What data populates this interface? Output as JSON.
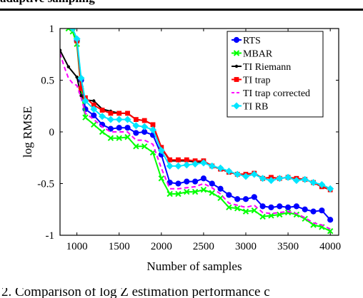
{
  "header": {
    "caption_fragment": "adaptive sampling"
  },
  "footer": {
    "caption_fragment": "2. Comparison of log Z estimation performance c"
  },
  "chart_data": {
    "type": "line",
    "title": "",
    "xlabel": "Number of samples",
    "ylabel": "log RMSE",
    "xlim": [
      800,
      4100
    ],
    "ylim": [
      -1,
      1
    ],
    "xticks": [
      1000,
      1500,
      2000,
      2500,
      3000,
      3500,
      4000
    ],
    "yticks": [
      1,
      0.5,
      0,
      -0.5,
      -1
    ],
    "ytick_labels": [
      "1",
      "0.5",
      "0",
      "-0.5",
      "-1"
    ],
    "grid": false,
    "legend_position": "top-right",
    "series": [
      {
        "name": "RTS",
        "color": "#0000ff",
        "marker": "circle",
        "dash": "",
        "points": [
          [
            950,
            1.0
          ],
          [
            1000,
            0.88
          ],
          [
            1050,
            0.5
          ],
          [
            1100,
            0.22
          ],
          [
            1200,
            0.16
          ],
          [
            1300,
            0.07
          ],
          [
            1400,
            0.03
          ],
          [
            1500,
            0.04
          ],
          [
            1600,
            0.04
          ],
          [
            1700,
            -0.01
          ],
          [
            1800,
            0.0
          ],
          [
            1900,
            -0.03
          ],
          [
            2000,
            -0.22
          ],
          [
            2100,
            -0.49
          ],
          [
            2200,
            -0.5
          ],
          [
            2300,
            -0.48
          ],
          [
            2400,
            -0.48
          ],
          [
            2500,
            -0.45
          ],
          [
            2600,
            -0.5
          ],
          [
            2700,
            -0.55
          ],
          [
            2800,
            -0.61
          ],
          [
            2900,
            -0.65
          ],
          [
            3000,
            -0.65
          ],
          [
            3100,
            -0.63
          ],
          [
            3200,
            -0.72
          ],
          [
            3300,
            -0.73
          ],
          [
            3400,
            -0.72
          ],
          [
            3500,
            -0.73
          ],
          [
            3600,
            -0.72
          ],
          [
            3700,
            -0.75
          ],
          [
            3800,
            -0.77
          ],
          [
            3900,
            -0.76
          ],
          [
            4000,
            -0.85
          ]
        ]
      },
      {
        "name": "MBAR",
        "color": "#00ff00",
        "marker": "x",
        "dash": "",
        "points": [
          [
            900,
            1.0
          ],
          [
            950,
            0.97
          ],
          [
            1000,
            0.85
          ],
          [
            1050,
            0.4
          ],
          [
            1100,
            0.14
          ],
          [
            1200,
            0.07
          ],
          [
            1300,
            0.0
          ],
          [
            1400,
            -0.06
          ],
          [
            1500,
            -0.06
          ],
          [
            1600,
            -0.05
          ],
          [
            1700,
            -0.14
          ],
          [
            1800,
            -0.14
          ],
          [
            1900,
            -0.2
          ],
          [
            2000,
            -0.45
          ],
          [
            2100,
            -0.6
          ],
          [
            2200,
            -0.6
          ],
          [
            2300,
            -0.58
          ],
          [
            2400,
            -0.58
          ],
          [
            2500,
            -0.56
          ],
          [
            2600,
            -0.59
          ],
          [
            2700,
            -0.64
          ],
          [
            2800,
            -0.73
          ],
          [
            2900,
            -0.74
          ],
          [
            3000,
            -0.77
          ],
          [
            3100,
            -0.76
          ],
          [
            3200,
            -0.82
          ],
          [
            3300,
            -0.81
          ],
          [
            3400,
            -0.8
          ],
          [
            3500,
            -0.78
          ],
          [
            3600,
            -0.8
          ],
          [
            3700,
            -0.84
          ],
          [
            3800,
            -0.9
          ],
          [
            3900,
            -0.92
          ],
          [
            4000,
            -0.96
          ]
        ]
      },
      {
        "name": "TI Riemann",
        "color": "#000000",
        "marker": "dot",
        "dash": "",
        "points": [
          [
            800,
            0.79
          ],
          [
            900,
            0.63
          ],
          [
            1000,
            0.53
          ],
          [
            1050,
            0.35
          ],
          [
            1100,
            0.31
          ],
          [
            1200,
            0.3
          ],
          [
            1300,
            0.22
          ],
          [
            1400,
            0.2
          ],
          [
            1500,
            0.18
          ],
          [
            1600,
            0.18
          ],
          [
            1700,
            0.12
          ],
          [
            1800,
            0.11
          ],
          [
            1900,
            0.07
          ],
          [
            2000,
            -0.15
          ],
          [
            2100,
            -0.28
          ],
          [
            2200,
            -0.28
          ],
          [
            2300,
            -0.28
          ],
          [
            2400,
            -0.29
          ],
          [
            2500,
            -0.29
          ],
          [
            2600,
            -0.33
          ],
          [
            2700,
            -0.36
          ],
          [
            2800,
            -0.39
          ],
          [
            2900,
            -0.41
          ],
          [
            3000,
            -0.41
          ],
          [
            3100,
            -0.4
          ],
          [
            3200,
            -0.45
          ],
          [
            3300,
            -0.44
          ],
          [
            3400,
            -0.45
          ],
          [
            3500,
            -0.44
          ],
          [
            3600,
            -0.45
          ],
          [
            3700,
            -0.46
          ],
          [
            3800,
            -0.49
          ],
          [
            3900,
            -0.53
          ],
          [
            4000,
            -0.56
          ]
        ]
      },
      {
        "name": "TI trap",
        "color": "#ff0000",
        "marker": "square",
        "dash": "",
        "points": [
          [
            1000,
            0.88
          ],
          [
            1050,
            0.42
          ],
          [
            1100,
            0.33
          ],
          [
            1200,
            0.26
          ],
          [
            1300,
            0.21
          ],
          [
            1400,
            0.18
          ],
          [
            1500,
            0.18
          ],
          [
            1600,
            0.18
          ],
          [
            1700,
            0.12
          ],
          [
            1800,
            0.11
          ],
          [
            1900,
            0.07
          ],
          [
            2000,
            -0.15
          ],
          [
            2100,
            -0.27
          ],
          [
            2200,
            -0.27
          ],
          [
            2300,
            -0.27
          ],
          [
            2400,
            -0.28
          ],
          [
            2500,
            -0.28
          ],
          [
            2600,
            -0.33
          ],
          [
            2700,
            -0.36
          ],
          [
            2800,
            -0.39
          ],
          [
            2900,
            -0.41
          ],
          [
            3000,
            -0.41
          ],
          [
            3100,
            -0.4
          ],
          [
            3200,
            -0.45
          ],
          [
            3300,
            -0.44
          ],
          [
            3400,
            -0.45
          ],
          [
            3500,
            -0.44
          ],
          [
            3600,
            -0.45
          ],
          [
            3700,
            -0.46
          ],
          [
            3800,
            -0.49
          ],
          [
            3900,
            -0.53
          ],
          [
            4000,
            -0.56
          ]
        ]
      },
      {
        "name": "TI trap corrected",
        "color": "#ff00ff",
        "marker": "none",
        "dash": "6,4",
        "points": [
          [
            800,
            0.76
          ],
          [
            850,
            0.63
          ],
          [
            900,
            0.52
          ],
          [
            950,
            0.47
          ],
          [
            1000,
            0.45
          ],
          [
            1050,
            0.33
          ],
          [
            1100,
            0.18
          ],
          [
            1200,
            0.12
          ],
          [
            1300,
            0.05
          ],
          [
            1400,
            0.0
          ],
          [
            1500,
            0.0
          ],
          [
            1600,
            0.0
          ],
          [
            1700,
            -0.08
          ],
          [
            1800,
            -0.08
          ],
          [
            1900,
            -0.12
          ],
          [
            2000,
            -0.35
          ],
          [
            2100,
            -0.55
          ],
          [
            2200,
            -0.55
          ],
          [
            2300,
            -0.54
          ],
          [
            2400,
            -0.53
          ],
          [
            2500,
            -0.5
          ],
          [
            2600,
            -0.54
          ],
          [
            2700,
            -0.6
          ],
          [
            2800,
            -0.69
          ],
          [
            2900,
            -0.71
          ],
          [
            3000,
            -0.73
          ],
          [
            3100,
            -0.71
          ],
          [
            3200,
            -0.78
          ],
          [
            3300,
            -0.79
          ],
          [
            3400,
            -0.78
          ],
          [
            3500,
            -0.77
          ],
          [
            3600,
            -0.79
          ],
          [
            3700,
            -0.83
          ],
          [
            3800,
            -0.88
          ],
          [
            3900,
            -0.9
          ],
          [
            4000,
            -0.94
          ]
        ]
      },
      {
        "name": "TI RB",
        "color": "#00e5ff",
        "marker": "diamond",
        "dash": "",
        "points": [
          [
            950,
            1.0
          ],
          [
            1000,
            0.9
          ],
          [
            1050,
            0.52
          ],
          [
            1100,
            0.3
          ],
          [
            1200,
            0.22
          ],
          [
            1300,
            0.15
          ],
          [
            1400,
            0.12
          ],
          [
            1500,
            0.12
          ],
          [
            1600,
            0.12
          ],
          [
            1700,
            0.06
          ],
          [
            1800,
            0.05
          ],
          [
            1900,
            0.02
          ],
          [
            2000,
            -0.18
          ],
          [
            2100,
            -0.33
          ],
          [
            2200,
            -0.33
          ],
          [
            2300,
            -0.32
          ],
          [
            2400,
            -0.31
          ],
          [
            2500,
            -0.3
          ],
          [
            2600,
            -0.33
          ],
          [
            2700,
            -0.35
          ],
          [
            2800,
            -0.38
          ],
          [
            2900,
            -0.41
          ],
          [
            3000,
            -0.43
          ],
          [
            3100,
            -0.41
          ],
          [
            3200,
            -0.45
          ],
          [
            3300,
            -0.47
          ],
          [
            3400,
            -0.45
          ],
          [
            3500,
            -0.44
          ],
          [
            3600,
            -0.47
          ],
          [
            3700,
            -0.46
          ],
          [
            3800,
            -0.49
          ],
          [
            3900,
            -0.51
          ],
          [
            4000,
            -0.55
          ]
        ]
      }
    ]
  }
}
